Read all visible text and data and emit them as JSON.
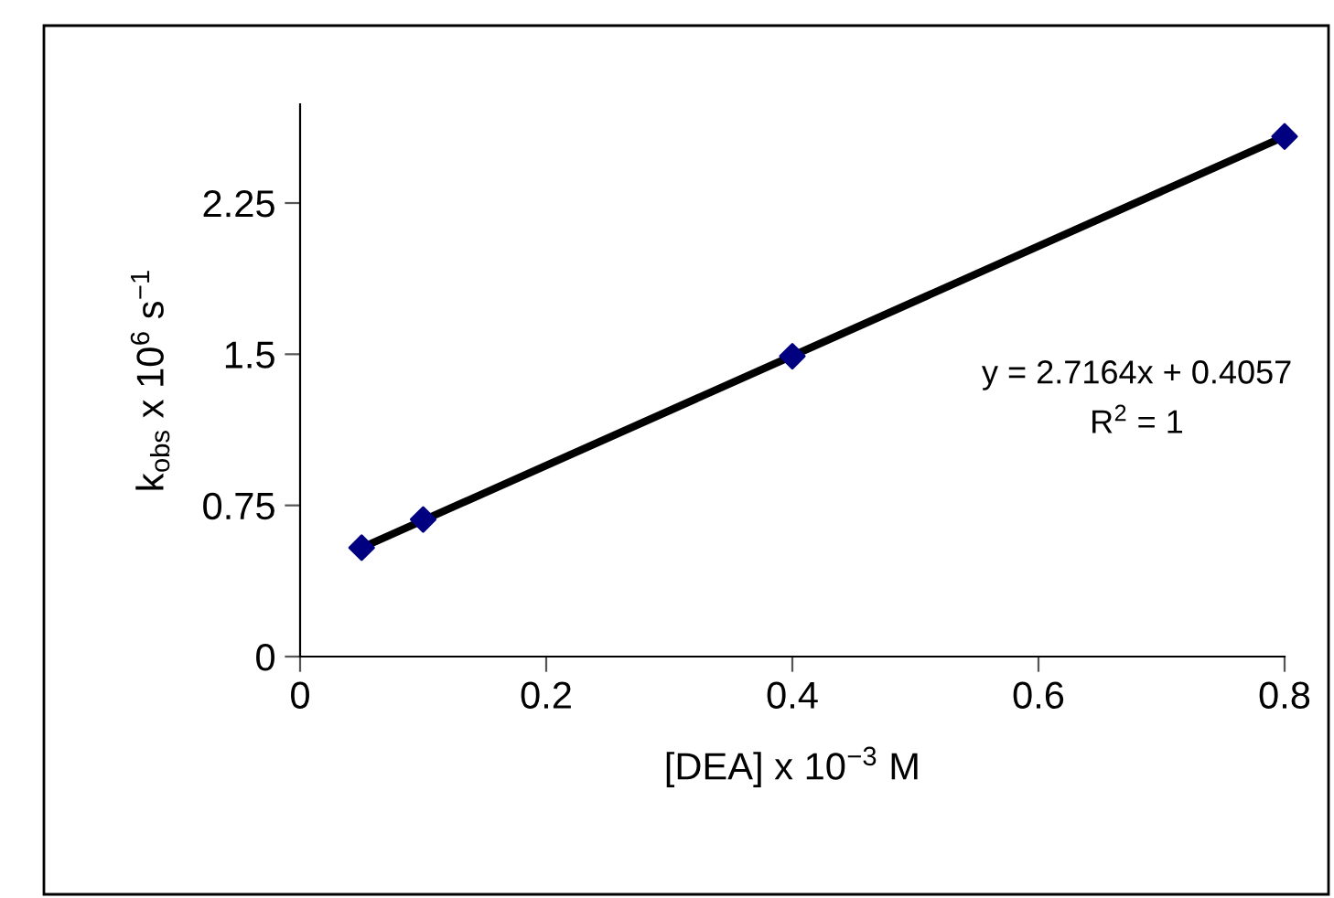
{
  "chart_data": {
    "type": "scatter",
    "xlabel": "[DEA] x 10$^{−3}$ M",
    "ylabel": "k$_{obs}$ x 10$^{6}$ s$^{−1}$",
    "xlim": [
      0,
      0.8
    ],
    "xticks": [
      0,
      0.2,
      0.4,
      0.6,
      0.8
    ],
    "ylim": [
      0,
      2.74
    ],
    "yticks": [
      0,
      0.75,
      1.5,
      2.25
    ],
    "grid": false,
    "legend": false,
    "series": [
      {
        "color": "#000080",
        "marker": "diamond",
        "x": [
          0.05,
          0.1,
          0.4,
          0.8
        ],
        "values": [
          0.54,
          0.68,
          1.49,
          2.58
        ]
      },
      {
        "type": "line",
        "color": "#000000",
        "marker": "none",
        "x": [
          0.05,
          0.8
        ],
        "values": [
          0.54,
          2.58
        ],
        "line_style": "solid"
      }
    ],
    "annotations": [
      "y = 2.7164x + 0.4057",
      "R$^{2}$ = 1"
    ]
  }
}
